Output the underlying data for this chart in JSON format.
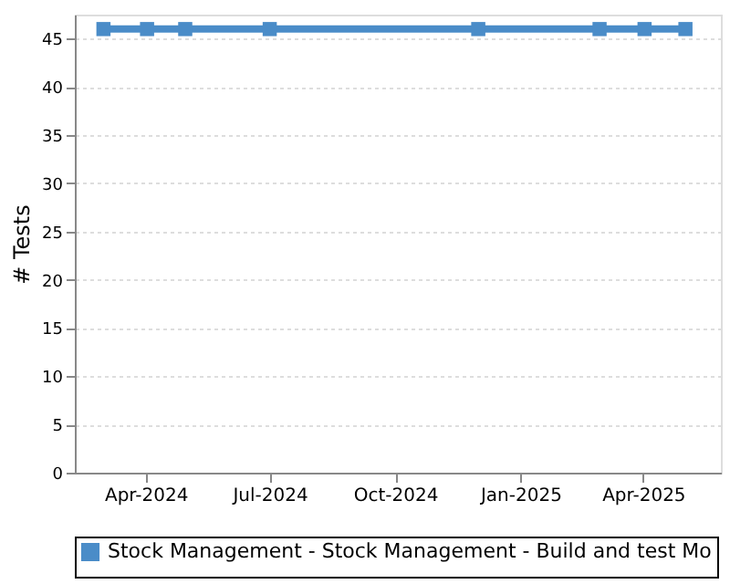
{
  "chart_data": {
    "type": "line",
    "ylabel": "# Tests",
    "x": [
      "2024-03-01",
      "2024-04-02",
      "2024-04-30",
      "2024-07-01",
      "2024-12-01",
      "2025-02-28",
      "2025-04-02",
      "2025-05-02"
    ],
    "series": [
      {
        "name": "Stock Management - Stock Management - Build and test Mo",
        "color": "#4a8cc8",
        "values": [
          46,
          46,
          46,
          46,
          46,
          46,
          46,
          46
        ]
      }
    ],
    "xlim": [
      "2024-02-09",
      "2025-05-28"
    ],
    "xticks": [
      {
        "value": "2024-04-01",
        "label": "Apr-2024"
      },
      {
        "value": "2024-07-01",
        "label": "Jul-2024"
      },
      {
        "value": "2024-10-01",
        "label": "Oct-2024"
      },
      {
        "value": "2025-01-01",
        "label": "Jan-2025"
      },
      {
        "value": "2025-04-01",
        "label": "Apr-2025"
      }
    ],
    "ylim": [
      0,
      47.5
    ],
    "yticks": [
      0,
      5,
      10,
      15,
      20,
      25,
      30,
      35,
      40,
      45
    ],
    "grid": "y",
    "legend": "bottom",
    "marker": "square",
    "line_style": "solid"
  }
}
